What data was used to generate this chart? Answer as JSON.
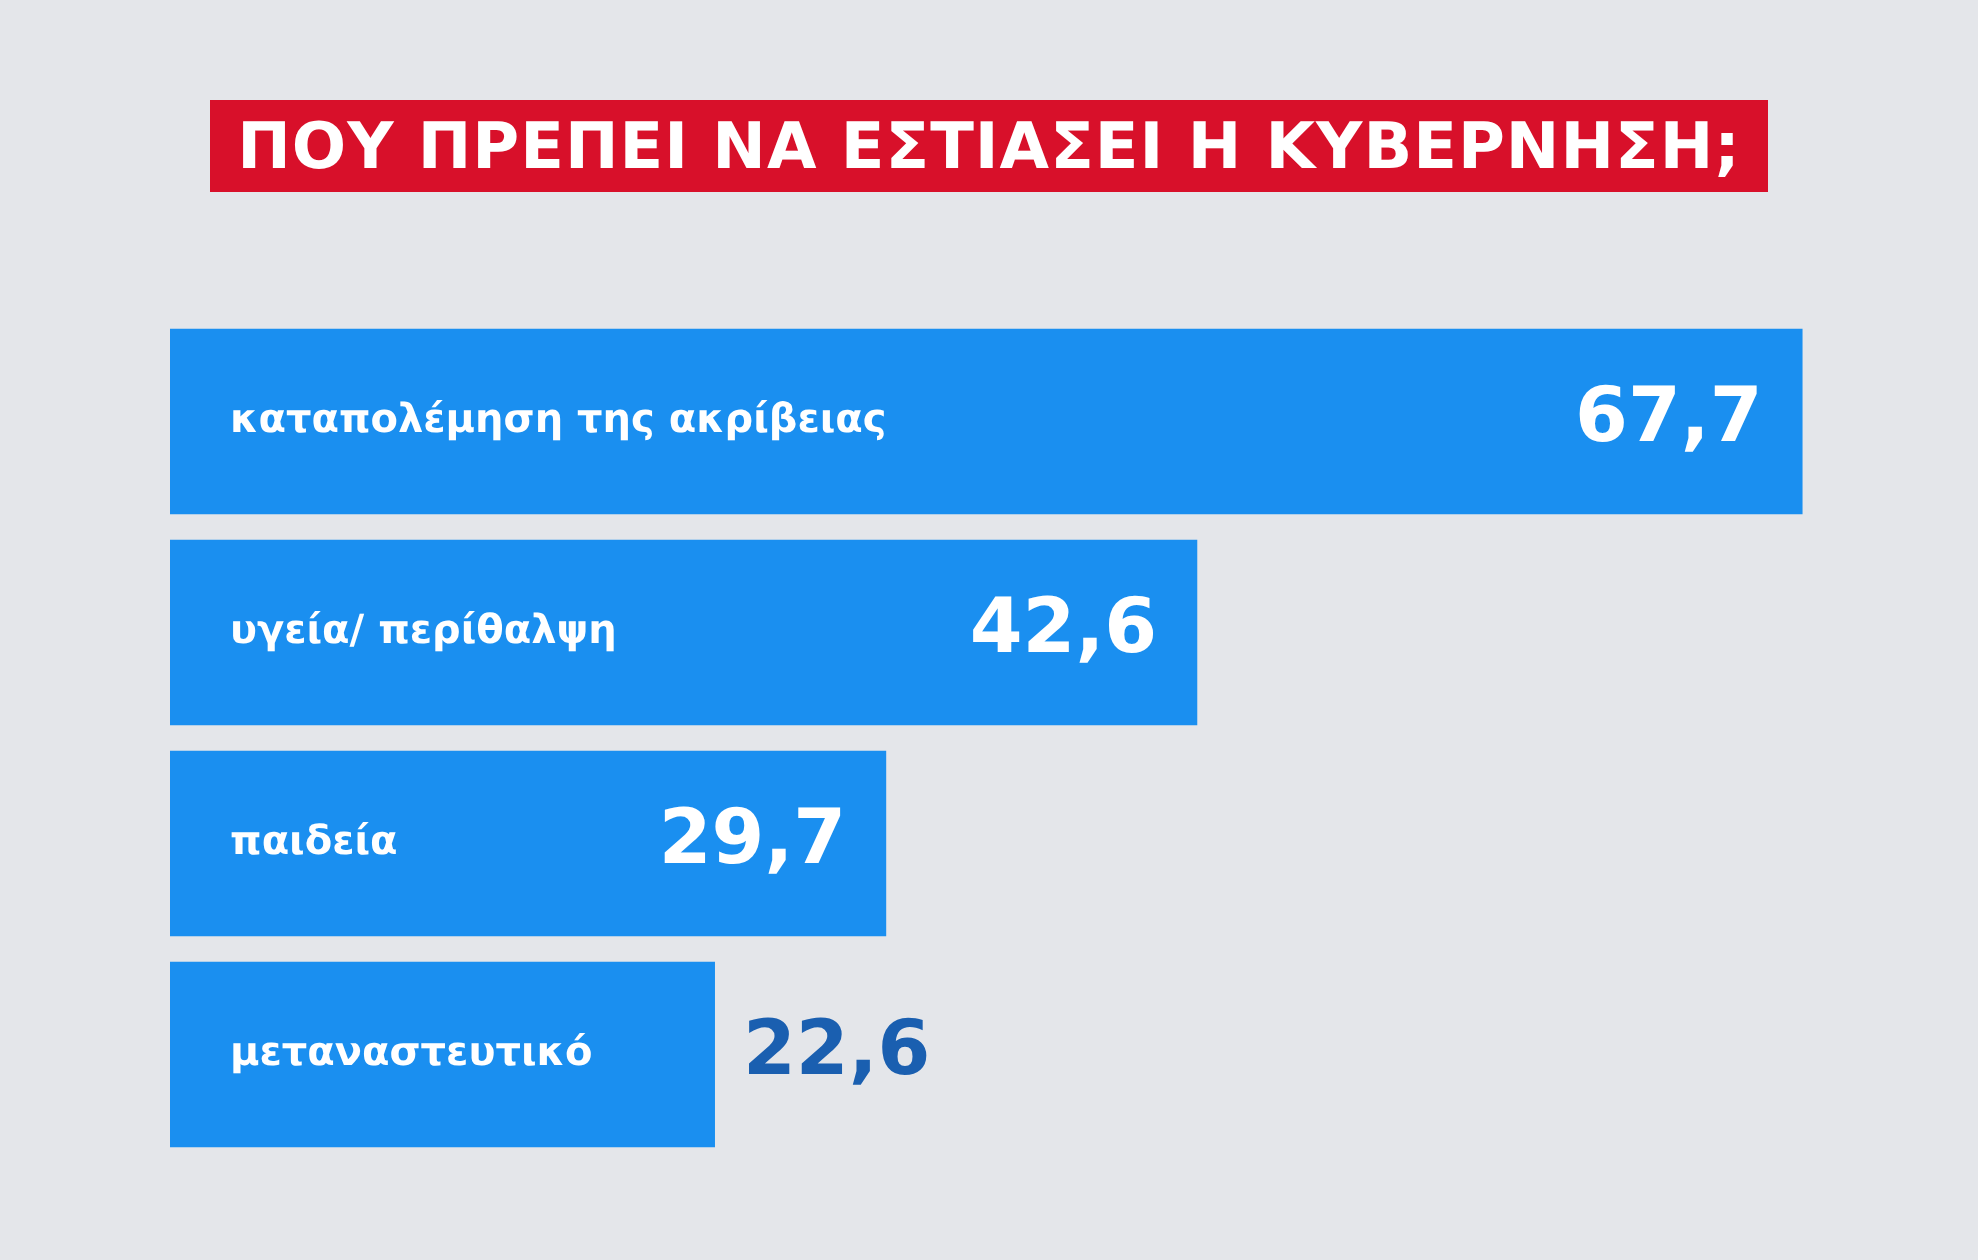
{
  "chart_data": {
    "type": "bar",
    "orientation": "horizontal",
    "title": "ΠΟΥ ΠΡΕΠΕΙ ΝΑ ΕΣΤΙΑΣΕΙ Η ΚΥΒΕΡΝΗΣΗ;",
    "categories": [
      "καταπολέμηση της ακρίβειας",
      "υγεία/ περίθαλψη",
      "παιδεία",
      "μεταναστευτικό"
    ],
    "values": [
      67.7,
      42.6,
      29.7,
      22.6
    ],
    "value_labels": [
      "67,7",
      "42,6",
      "29,7",
      "22,6"
    ],
    "color": "#1a8ff0",
    "tick_labels": false
  }
}
